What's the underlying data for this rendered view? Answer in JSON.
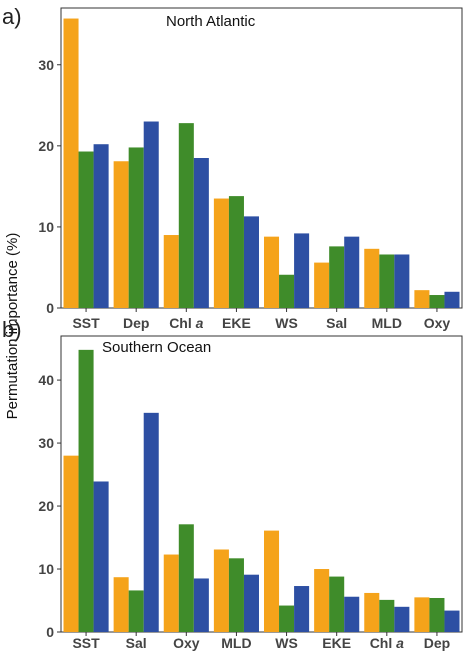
{
  "ylabel": "Permutation importance (%)",
  "colors": {
    "series1": "#F5A31A",
    "series2": "#3F8C2A",
    "series3": "#2D4FA3"
  },
  "chart_data": [
    {
      "type": "bar",
      "panel_letter": "a)",
      "title": "North Atlantic",
      "ylim": [
        0,
        37
      ],
      "yticks": [
        0,
        10,
        20,
        30
      ],
      "categories": [
        {
          "text": "SST",
          "italic": ""
        },
        {
          "text": "Dep",
          "italic": ""
        },
        {
          "text": "Chl ",
          "italic": "a"
        },
        {
          "text": "EKE",
          "italic": ""
        },
        {
          "text": "WS",
          "italic": ""
        },
        {
          "text": "Sal",
          "italic": ""
        },
        {
          "text": "MLD",
          "italic": ""
        },
        {
          "text": "Oxy",
          "italic": ""
        }
      ],
      "series": [
        {
          "values": [
            35.7,
            18.1,
            9.0,
            13.5,
            8.8,
            5.6,
            7.3,
            2.2
          ]
        },
        {
          "values": [
            19.3,
            19.8,
            22.8,
            13.8,
            4.1,
            7.6,
            6.6,
            1.6
          ]
        },
        {
          "values": [
            20.2,
            23.0,
            18.5,
            11.3,
            9.2,
            8.8,
            6.6,
            2.0
          ]
        }
      ],
      "grid": false
    },
    {
      "type": "bar",
      "panel_letter": "b)",
      "title": "Southern Ocean",
      "ylim": [
        0,
        47
      ],
      "yticks": [
        0,
        10,
        20,
        30,
        40
      ],
      "categories": [
        {
          "text": "SST",
          "italic": ""
        },
        {
          "text": "Sal",
          "italic": ""
        },
        {
          "text": "Oxy",
          "italic": ""
        },
        {
          "text": "MLD",
          "italic": ""
        },
        {
          "text": "WS",
          "italic": ""
        },
        {
          "text": "EKE",
          "italic": ""
        },
        {
          "text": "Chl ",
          "italic": "a"
        },
        {
          "text": "Dep",
          "italic": ""
        }
      ],
      "series": [
        {
          "values": [
            28.0,
            8.7,
            12.3,
            13.1,
            16.1,
            10.0,
            6.2,
            5.5
          ]
        },
        {
          "values": [
            44.8,
            6.6,
            17.1,
            11.7,
            4.2,
            8.8,
            5.1,
            5.4
          ]
        },
        {
          "values": [
            23.9,
            34.8,
            8.5,
            9.1,
            7.3,
            5.6,
            4.0,
            3.4
          ]
        }
      ],
      "grid": false
    }
  ]
}
